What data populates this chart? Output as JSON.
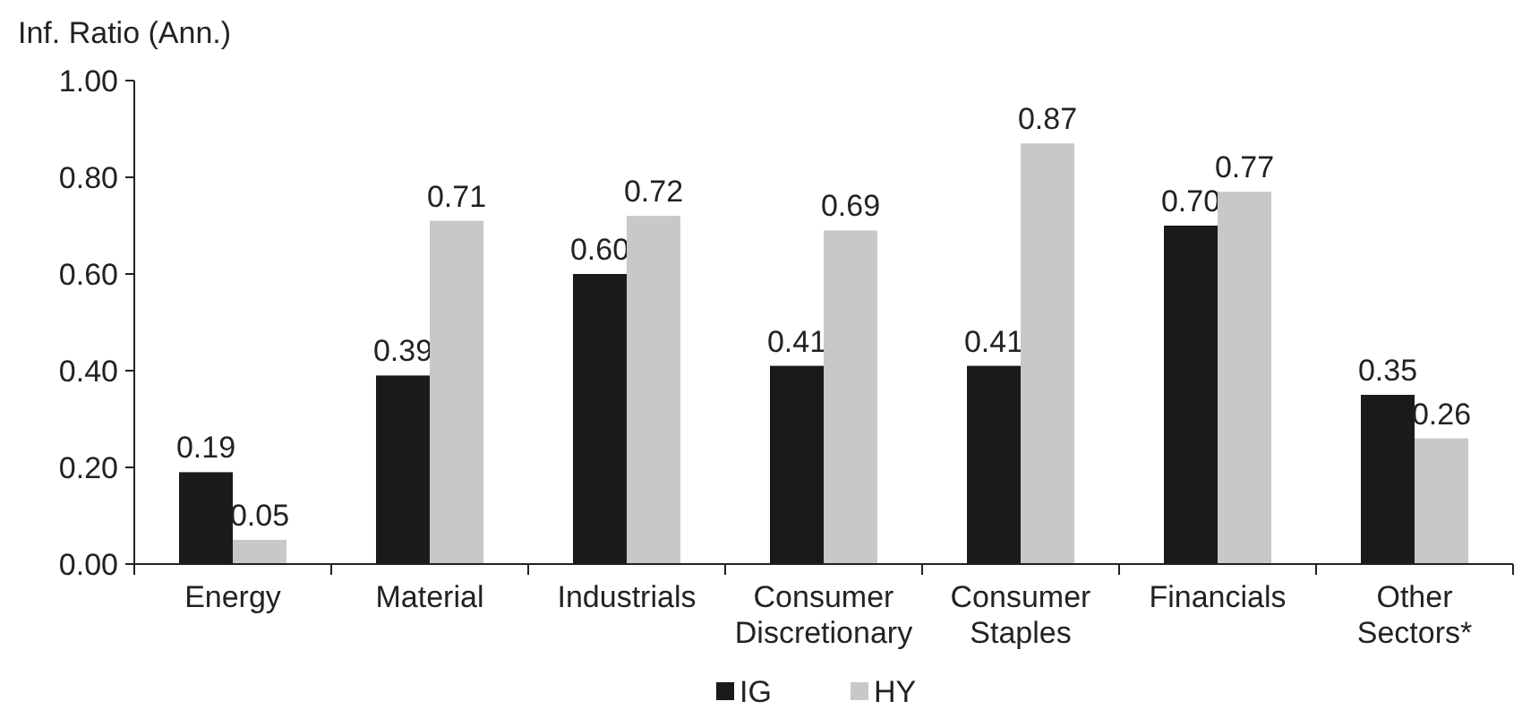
{
  "chart_data": {
    "type": "bar",
    "ylabel": "Inf. Ratio (Ann.)",
    "categories": [
      "Energy",
      "Material",
      "Industrials",
      "Consumer Discretionary",
      "Consumer Staples",
      "Financials",
      "Other Sectors*"
    ],
    "series": [
      {
        "name": "IG",
        "color": "#1a1a1a",
        "values": [
          0.19,
          0.39,
          0.6,
          0.41,
          0.41,
          0.7,
          0.35
        ],
        "value_labels": [
          "0.19",
          "0.39",
          "0.60",
          "0.41",
          "0.41",
          "0.70",
          "0.35"
        ]
      },
      {
        "name": "HY",
        "color": "#c8c8c8",
        "values": [
          0.05,
          0.71,
          0.72,
          0.69,
          0.87,
          0.77,
          0.26
        ],
        "value_labels": [
          "0.05",
          "0.71",
          "0.72",
          "0.69",
          "0.87",
          "0.77",
          "0.26"
        ]
      }
    ],
    "ylim": [
      0,
      1
    ],
    "yticks": [
      {
        "value": 0,
        "label": "0.00"
      },
      {
        "value": 0.2,
        "label": "0.20"
      },
      {
        "value": 0.4,
        "label": "0.40"
      },
      {
        "value": 0.6,
        "label": "0.60"
      },
      {
        "value": 0.8,
        "label": "0.80"
      },
      {
        "value": 1,
        "label": "1.00"
      }
    ],
    "grid": false,
    "legend": "bottom"
  }
}
